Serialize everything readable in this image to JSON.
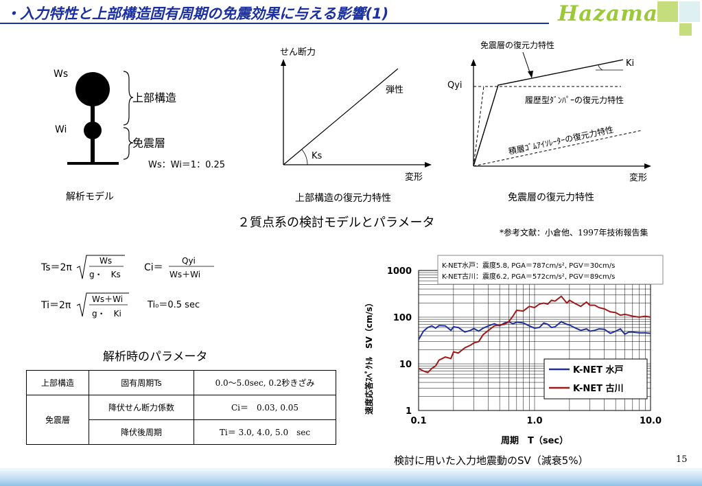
{
  "header": {
    "title": "・入力特性と上部構造固有周期の免震効果に与える影響(1)",
    "logo": "Hazama",
    "accent_color": "#1a2fa0",
    "logo_color": "#9cc93a"
  },
  "model": {
    "label_ws": "Ws",
    "label_wi": "Wi",
    "brace_upper": "上部構造",
    "brace_lower": "免震層",
    "ratio": "Ws：Wi＝1：0.25",
    "caption": "解析モデル"
  },
  "upper_graph": {
    "y_label": "せん断力",
    "x_label": "変形",
    "line_label": "弾性",
    "angle_label": "Ks",
    "caption": "上部構造の復元力特性"
  },
  "iso_graph": {
    "top_label": "免震層の復元力特性",
    "ki_label": "Ki",
    "qyi_label": "Qyi",
    "hysteretic_label": "履歴型ﾀﾞﾝﾊﾟｰの復元力特性",
    "rubber_label": "積層ｺﾞﾑｱｲｿﾚｰﾀｰの復元力特性",
    "x_label": "変形",
    "caption": "免震層の復元力特性"
  },
  "section_title": "２質点系の検討モデルとパラメータ",
  "reference": "*参考文献：小倉他、1997年技術報告集",
  "formulas": {
    "ts_lhs": "Ts＝2π",
    "ts_num": "Ws",
    "ts_den": "g・　Ks",
    "ci_lhs": "Ci＝",
    "ci_num": "Qyi",
    "ci_den": "Ws＋Wi",
    "ti_lhs": "Ti＝2π",
    "ti_num": "Ws＋Wi",
    "ti_den": "g・　Ki",
    "ti0": "Ti₀＝0.5 sec"
  },
  "params": {
    "title": "解析時のパラメータ",
    "rows": [
      {
        "group": "上部構造",
        "name": "固有周期Ts",
        "value": "0.0～5.0sec, 0.2秒きざみ"
      },
      {
        "group": "免震層",
        "name": "降伏せん断力係数",
        "value": "Ci＝　0.03, 0.05"
      },
      {
        "group": "",
        "name": "降伏後周期",
        "value": "Ti＝ 3.0, 4.0, 5.0　sec"
      }
    ]
  },
  "chart_data": {
    "type": "line",
    "ylabel": "速度応答ｽﾍﾟｸﾄﾙ　SV（cm/s）",
    "xlabel": "周期　T（sec）",
    "x_scale": "log",
    "y_scale": "log",
    "xlim": [
      0.1,
      10.0
    ],
    "ylim": [
      1,
      1000
    ],
    "x_ticks": [
      "0.1",
      "1.0",
      "10.0"
    ],
    "y_ticks": [
      "1",
      "10",
      "100",
      "1000"
    ],
    "grid": true,
    "legend_placement": "bottom-right",
    "annotation_1": "K-NET水戸：震度5.8, PGA＝787cm/s², PGV＝30cm/s",
    "annotation_2": "K-NET古川：震度6.2, PGA＝572cm/s², PGV＝89cm/s",
    "caption": "検討に用いた入力地震動のSV（減衰5%）",
    "series": [
      {
        "name": "K-NET 水戸",
        "color": "#1f2f9a",
        "x": [
          0.1,
          0.11,
          0.12,
          0.13,
          0.14,
          0.15,
          0.17,
          0.19,
          0.2,
          0.22,
          0.25,
          0.28,
          0.3,
          0.33,
          0.36,
          0.4,
          0.45,
          0.5,
          0.55,
          0.6,
          0.65,
          0.7,
          0.8,
          0.9,
          1.0,
          1.1,
          1.2,
          1.3,
          1.4,
          1.5,
          1.7,
          1.9,
          2.0,
          2.2,
          2.5,
          2.8,
          3.0,
          3.3,
          3.6,
          4.0,
          4.5,
          5.0,
          5.5,
          6.0,
          6.5,
          7.0,
          8.0,
          9.0,
          10.0
        ],
        "y": [
          33,
          50,
          60,
          65,
          58,
          66,
          65,
          52,
          62,
          60,
          48,
          52,
          57,
          50,
          58,
          65,
          72,
          65,
          75,
          80,
          72,
          78,
          75,
          65,
          58,
          60,
          75,
          70,
          60,
          62,
          80,
          70,
          68,
          60,
          52,
          56,
          50,
          52,
          56,
          55,
          45,
          50,
          56,
          43,
          48,
          48,
          46,
          46,
          45
        ]
      },
      {
        "name": "K-NET 古川",
        "color": "#a01818",
        "x": [
          0.1,
          0.11,
          0.12,
          0.13,
          0.14,
          0.15,
          0.17,
          0.19,
          0.2,
          0.22,
          0.25,
          0.28,
          0.3,
          0.33,
          0.36,
          0.4,
          0.45,
          0.5,
          0.55,
          0.6,
          0.65,
          0.7,
          0.8,
          0.9,
          1.0,
          1.1,
          1.2,
          1.3,
          1.4,
          1.5,
          1.7,
          1.9,
          2.0,
          2.2,
          2.5,
          2.8,
          3.0,
          3.3,
          3.6,
          4.0,
          4.5,
          5.0,
          5.5,
          6.0,
          6.5,
          7.0,
          8.0,
          9.0,
          10.0
        ],
        "y": [
          8,
          7,
          6.5,
          8,
          9,
          12,
          14,
          13,
          18,
          17,
          22,
          25,
          28,
          30,
          42,
          52,
          65,
          68,
          70,
          80,
          105,
          140,
          135,
          170,
          160,
          190,
          200,
          190,
          230,
          220,
          280,
          200,
          230,
          200,
          170,
          210,
          180,
          180,
          160,
          150,
          130,
          125,
          110,
          115,
          110,
          105,
          100,
          105,
          100
        ]
      }
    ]
  }
}
